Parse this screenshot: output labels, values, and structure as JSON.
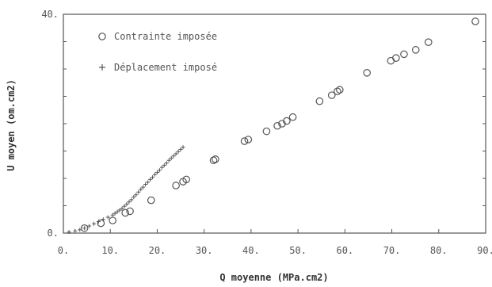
{
  "chart_data": {
    "type": "scatter",
    "xlabel": "Q moyenne (MPa.cm2)",
    "ylabel": "U moyen (om.cm2)",
    "xlim": [
      0,
      90
    ],
    "ylim": [
      0,
      40
    ],
    "x_ticks": [
      0,
      10,
      20,
      30,
      40,
      50,
      60,
      70,
      80,
      90
    ],
    "x_tick_labels": [
      "0.",
      "10.",
      "20.",
      "30.",
      "40.",
      "50.",
      "60.",
      "70.",
      "80.",
      "90."
    ],
    "y_ticks": [
      0,
      40
    ],
    "y_tick_labels": [
      "0.",
      "40."
    ],
    "grid": false,
    "legend_position": "top-left",
    "series": [
      {
        "name": "Contrainte imposée",
        "marker": "circle",
        "color": "#555555",
        "x": [
          4.5,
          8.0,
          10.5,
          13.2,
          14.2,
          18.7,
          24.0,
          25.5,
          26.2,
          32.0,
          32.4,
          38.6,
          39.4,
          43.3,
          45.6,
          46.6,
          47.6,
          48.9,
          54.6,
          57.2,
          58.4,
          58.9,
          64.7,
          69.8,
          70.9,
          72.6,
          75.1,
          77.8,
          87.8
        ],
        "y": [
          0.9,
          1.8,
          2.3,
          3.7,
          4.0,
          6.0,
          8.7,
          9.4,
          9.8,
          13.3,
          13.5,
          16.8,
          17.1,
          18.6,
          19.6,
          20.0,
          20.5,
          21.2,
          24.1,
          25.2,
          25.9,
          26.2,
          29.3,
          31.5,
          32.0,
          32.7,
          33.5,
          34.9,
          38.7
        ]
      },
      {
        "name": "Déplacement imposé",
        "marker": "plus",
        "color": "#555555",
        "x": [
          1.2,
          2.5,
          3.5,
          4.5,
          5.5,
          6.5,
          7.5,
          8.5,
          9.5,
          10.5,
          11.0,
          11.5,
          12.0,
          12.5,
          13.0,
          13.5,
          14.0,
          14.5,
          15.0,
          15.5,
          16.0,
          16.5,
          17.0,
          17.5,
          18.0,
          18.5,
          19.0,
          19.5,
          20.0,
          20.5,
          21.0,
          21.5,
          22.0,
          22.5,
          23.0,
          23.5,
          24.0,
          24.5,
          25.0,
          25.5
        ],
        "y": [
          0.2,
          0.4,
          0.6,
          0.9,
          1.3,
          1.7,
          2.1,
          2.5,
          2.9,
          3.3,
          3.6,
          3.9,
          4.2,
          4.5,
          4.9,
          5.3,
          5.7,
          6.1,
          6.6,
          7.0,
          7.5,
          8.0,
          8.4,
          8.9,
          9.3,
          9.8,
          10.2,
          10.7,
          11.1,
          11.5,
          12.0,
          12.4,
          12.8,
          13.3,
          13.7,
          14.1,
          14.5,
          14.9,
          15.3,
          15.7
        ]
      }
    ]
  }
}
